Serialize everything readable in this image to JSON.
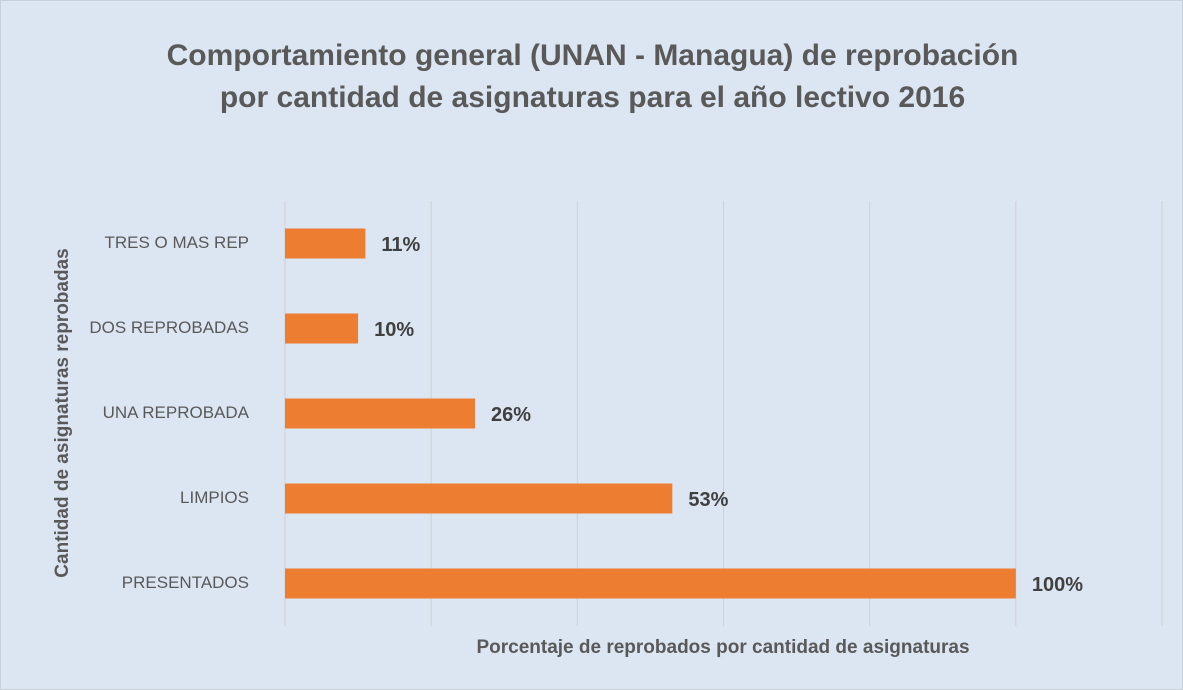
{
  "chart_data": {
    "type": "barh",
    "title": "Comportamiento general (UNAN - Managua) de reprobación por cantidad de asignaturas para el año lectivo 2016",
    "xlabel": "Porcentaje  de reprobados por cantidad de asignaturas",
    "ylabel": "Cantidad de asignaturas reprobadas",
    "categories": [
      "PRESENTADOS",
      "LIMPIOS",
      "UNA REPROBADA",
      "DOS REPROBADAS",
      "TRES O MAS REP"
    ],
    "values": [
      100,
      53,
      26,
      10,
      11
    ],
    "value_labels": [
      "100%",
      "53%",
      "26%",
      "10%",
      "11%"
    ],
    "color": "#ed7d31",
    "xlim": [
      0,
      120
    ],
    "xticks": [
      0,
      20,
      40,
      60,
      80,
      100,
      120
    ],
    "grid": true
  }
}
